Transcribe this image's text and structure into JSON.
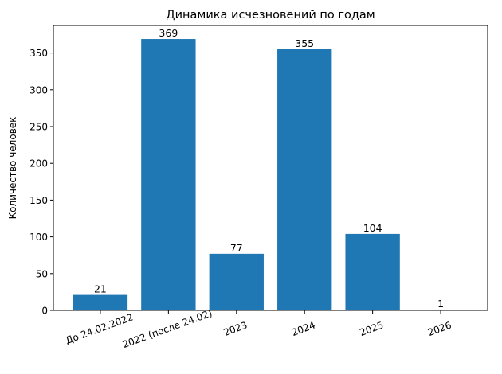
{
  "chart_data": {
    "type": "bar",
    "title": "Динамика исчезновений по годам",
    "xlabel": "",
    "ylabel": "Количество человек",
    "categories": [
      "До 24.02.2022",
      "2022 (после 24.02)",
      "2023",
      "2024",
      "2025",
      "2026"
    ],
    "values": [
      21,
      369,
      77,
      355,
      104,
      1
    ],
    "data_labels": [
      "21",
      "369",
      "77",
      "355",
      "104",
      "1"
    ],
    "ylim": [
      0,
      387.45
    ],
    "yticks": [
      0,
      50,
      100,
      150,
      200,
      250,
      300,
      350
    ],
    "xtick_rotation": 20,
    "grid": false,
    "bar_color": "#1f77b4"
  }
}
